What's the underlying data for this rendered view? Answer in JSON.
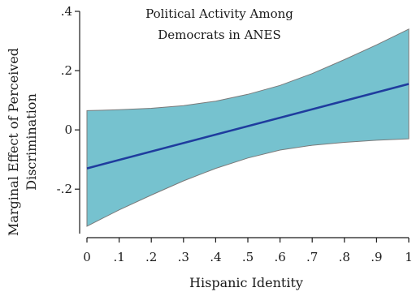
{
  "chart_data": {
    "type": "line",
    "title_lines": [
      "Political Activity Among",
      "Democrats in ANES"
    ],
    "xlabel": "Hispanic Identity",
    "ylabel_lines": [
      "Marginal Effect of Perceived",
      "Discrimination"
    ],
    "xlim": [
      0,
      1
    ],
    "ylim": [
      -0.35,
      0.4
    ],
    "x_ticks": [
      0,
      0.1,
      0.2,
      0.3,
      0.4,
      0.5,
      0.6,
      0.7,
      0.8,
      0.9,
      1
    ],
    "x_tick_labels": [
      "0",
      ".1",
      ".2",
      ".3",
      ".4",
      ".5",
      ".6",
      ".7",
      ".8",
      ".9",
      "1"
    ],
    "y_ticks": [
      -0.2,
      0,
      0.2,
      0.4
    ],
    "y_tick_labels": [
      "-.2",
      "0",
      ".2",
      ".4"
    ],
    "grid": false,
    "legend": "none",
    "series": [
      {
        "x": [
          0,
          1
        ],
        "values": [
          -0.13,
          0.155
        ],
        "color": "#1f3c9e"
      }
    ],
    "confidence_band": {
      "x": [
        0,
        0.1,
        0.2,
        0.3,
        0.4,
        0.5,
        0.6,
        0.7,
        0.8,
        0.9,
        1
      ],
      "upper": [
        0.065,
        0.068,
        0.073,
        0.082,
        0.097,
        0.12,
        0.15,
        0.19,
        0.237,
        0.287,
        0.34
      ],
      "lower": [
        -0.325,
        -0.27,
        -0.22,
        -0.172,
        -0.13,
        -0.095,
        -0.068,
        -0.052,
        -0.042,
        -0.035,
        -0.03
      ],
      "fill": "#76c2cf",
      "stroke": "#7a7a7a"
    }
  }
}
